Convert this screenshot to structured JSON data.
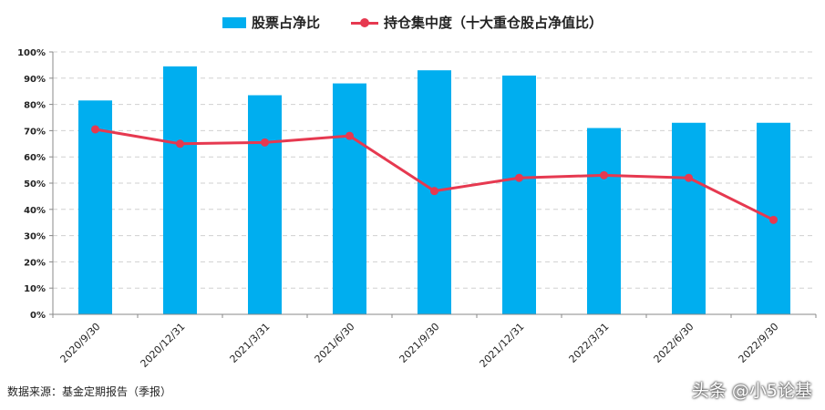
{
  "chart_data": {
    "type": "bar",
    "categories": [
      "2020/9/30",
      "2020/12/31",
      "2021/3/31",
      "2021/6/30",
      "2021/9/30",
      "2021/12/31",
      "2022/3/31",
      "2022/6/30",
      "2022/9/30"
    ],
    "series": [
      {
        "name": "股票占净比",
        "type": "bar",
        "color": "#00AEEF",
        "values": [
          81.5,
          94.5,
          83.5,
          88.0,
          93.0,
          91.0,
          71.0,
          73.0,
          73.0
        ]
      },
      {
        "name": "持仓集中度（十大重仓股占净值比）",
        "type": "line",
        "color": "#E63950",
        "values": [
          70.5,
          65.0,
          65.5,
          68.0,
          47.0,
          52.0,
          53.0,
          52.0,
          36.0
        ]
      }
    ],
    "yticks": [
      "0%",
      "10%",
      "20%",
      "30%",
      "40%",
      "50%",
      "60%",
      "70%",
      "80%",
      "90%",
      "100%"
    ],
    "ylim": [
      0,
      100
    ],
    "grid": true,
    "legend_position": "top-center"
  },
  "footer": {
    "source": "数据来源：基金定期报告（季报）",
    "watermark": "头条 @小5论基"
  }
}
